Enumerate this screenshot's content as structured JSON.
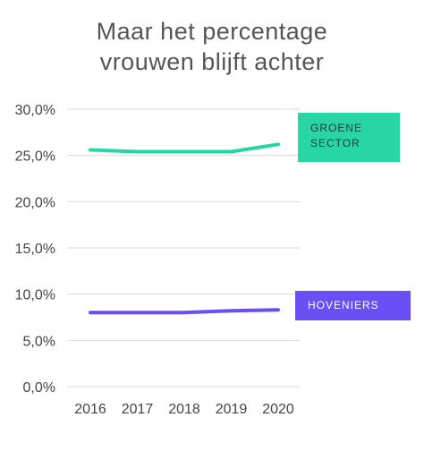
{
  "title": {
    "line1": "Maar het percentage",
    "line2": "vrouwen blijft achter"
  },
  "colors": {
    "green": "#27d6a2",
    "purple": "#6a4ff5",
    "grid": "#d9d9d9"
  },
  "chart_data": {
    "type": "line",
    "title": "Maar het percentage vrouwen blijft achter",
    "x": [
      "2016",
      "2017",
      "2018",
      "2019",
      "2020"
    ],
    "yticks": [
      "0,0%",
      "5,0%",
      "10,0%",
      "15,0%",
      "20,0%",
      "25,0%",
      "30,0%"
    ],
    "ylim": [
      0,
      30
    ],
    "grid": true,
    "series": [
      {
        "name": "GROENE SECTOR",
        "color": "#27d6a2",
        "values": [
          25.6,
          25.4,
          25.4,
          25.4,
          26.2
        ]
      },
      {
        "name": "HOVENIERS",
        "color": "#6a4ff5",
        "values": [
          8.0,
          8.0,
          8.0,
          8.2,
          8.3
        ]
      }
    ]
  },
  "legend": {
    "green_line1": "GROENE",
    "green_line2": "SECTOR",
    "purple_label": "HOVENIERS"
  }
}
